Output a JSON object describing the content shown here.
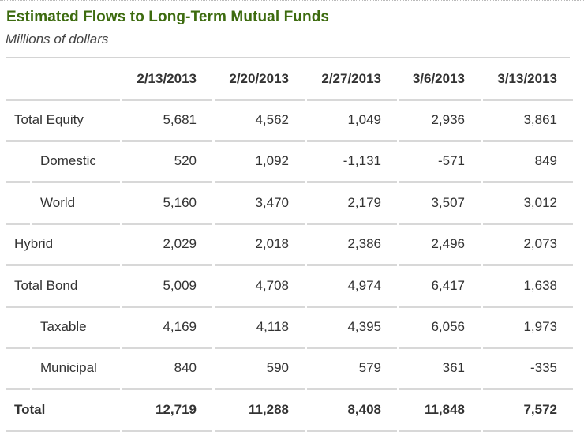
{
  "title": "Estimated Flows to Long-Term Mutual Funds",
  "subtitle": "Millions of dollars",
  "table": {
    "columns": [
      "",
      "2/13/2013",
      "2/20/2013",
      "2/27/2013",
      "3/6/2013",
      "3/13/2013"
    ],
    "rows": [
      {
        "label": "Total Equity",
        "indent": false,
        "bold": false,
        "values": [
          "5,681",
          "4,562",
          "1,049",
          "2,936",
          "3,861"
        ]
      },
      {
        "label": "Domestic",
        "indent": true,
        "bold": false,
        "values": [
          "520",
          "1,092",
          "-1,131",
          "-571",
          "849"
        ]
      },
      {
        "label": "World",
        "indent": true,
        "bold": false,
        "values": [
          "5,160",
          "3,470",
          "2,179",
          "3,507",
          "3,012"
        ]
      },
      {
        "label": "Hybrid",
        "indent": false,
        "bold": false,
        "values": [
          "2,029",
          "2,018",
          "2,386",
          "2,496",
          "2,073"
        ]
      },
      {
        "label": "Total Bond",
        "indent": false,
        "bold": false,
        "values": [
          "5,009",
          "4,708",
          "4,974",
          "6,417",
          "1,638"
        ]
      },
      {
        "label": "Taxable",
        "indent": true,
        "bold": false,
        "values": [
          "4,169",
          "4,118",
          "4,395",
          "6,056",
          "1,973"
        ]
      },
      {
        "label": "Municipal",
        "indent": true,
        "bold": false,
        "values": [
          "840",
          "590",
          "579",
          "361",
          "-335"
        ]
      },
      {
        "label": "Total",
        "indent": false,
        "bold": true,
        "values": [
          "12,719",
          "11,288",
          "8,408",
          "11,848",
          "7,572"
        ]
      }
    ]
  },
  "colors": {
    "title": "#3d6b0f",
    "rule": "#d8d8d8"
  }
}
